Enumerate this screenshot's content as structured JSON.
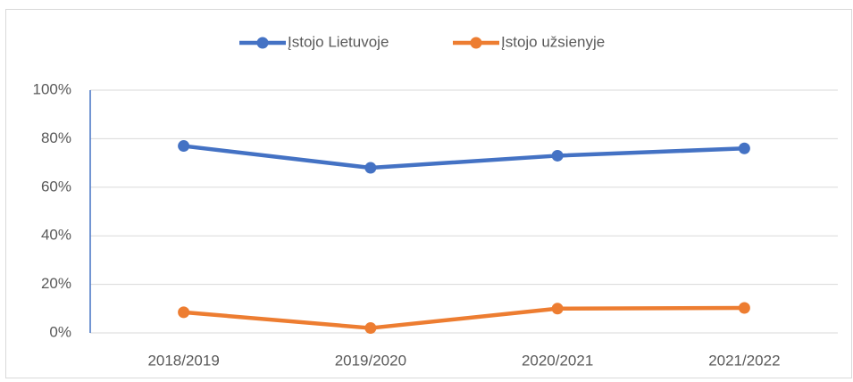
{
  "chart_data": {
    "type": "line",
    "categories": [
      "2018/2019",
      "2019/2020",
      "2020/2021",
      "2021/2022"
    ],
    "series": [
      {
        "name": "Įstojo Lietuvoje",
        "color": "#4472c4",
        "values": [
          77,
          68,
          73,
          76
        ]
      },
      {
        "name": "Įstojo užsienyje",
        "color": "#ed7d31",
        "values": [
          8.5,
          2,
          10,
          10.3
        ]
      }
    ],
    "ylim": [
      0,
      100
    ],
    "yticks": [
      {
        "value": 0,
        "label": "0%"
      },
      {
        "value": 20,
        "label": "20%"
      },
      {
        "value": 40,
        "label": "40%"
      },
      {
        "value": 60,
        "label": "60%"
      },
      {
        "value": 80,
        "label": "80%"
      },
      {
        "value": 100,
        "label": "100%"
      }
    ],
    "grid": true,
    "legend": "top"
  }
}
